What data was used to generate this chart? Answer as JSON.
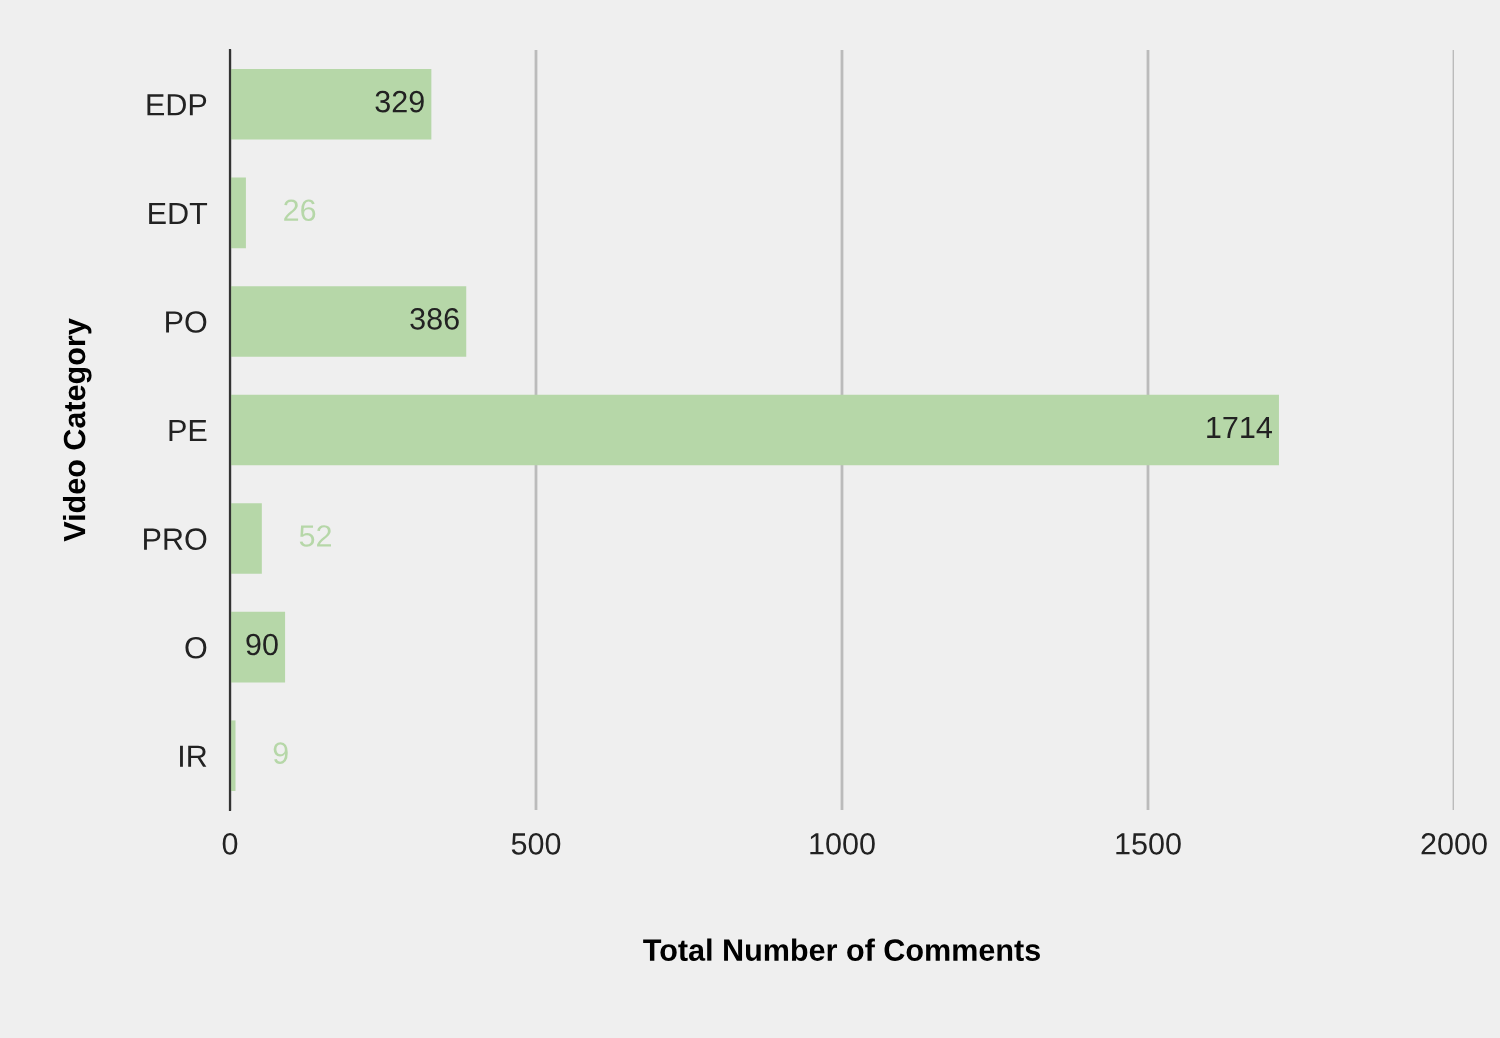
{
  "chart_data": {
    "type": "bar",
    "orientation": "horizontal",
    "xlabel": "Total Number of Comments",
    "ylabel": "Video Category",
    "categories": [
      "EDP",
      "EDT",
      "PO",
      "PE",
      "PRO",
      "O",
      "IR"
    ],
    "values": [
      329,
      26,
      386,
      1714,
      52,
      90,
      9
    ],
    "color": "#b6d7a8",
    "xlim": [
      0,
      2000
    ],
    "xticks": [
      0,
      500,
      1000,
      1500,
      2000
    ],
    "grid": "x",
    "data_labels": true
  }
}
